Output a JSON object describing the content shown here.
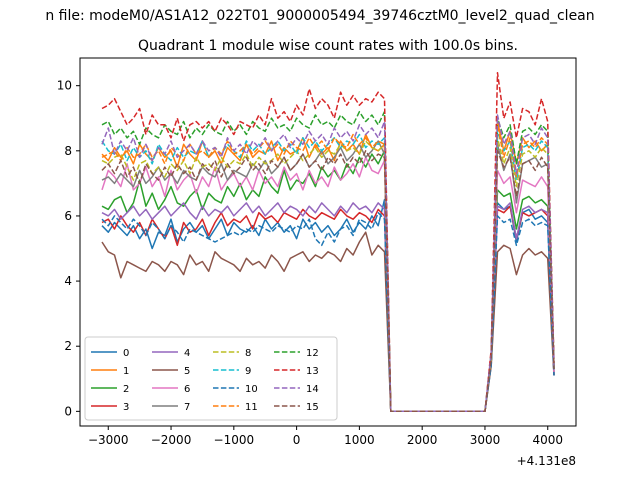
{
  "figure": {
    "suptitle": "n file: modeM0/AS1A12_022T01_9000005494_39746cztM0_level2_quad_clean",
    "title": "Quadrant 1 module wise count rates with 100.0s bins.",
    "offset_label": "+4.131e8"
  },
  "chart_data": {
    "type": "line",
    "title": "Quadrant 1 module wise count rates with 100.0s bins.",
    "xlabel": "",
    "ylabel": "",
    "x_offset": 413100000,
    "xlim": [
      -3450,
      4450
    ],
    "ylim": [
      -0.45,
      10.85
    ],
    "xticks": [
      -3000,
      -2000,
      -1000,
      0,
      1000,
      2000,
      3000,
      4000
    ],
    "xtick_labels": [
      "−3000",
      "−2000",
      "−1000",
      "0",
      "1000",
      "2000",
      "3000",
      "4000"
    ],
    "yticks": [
      0,
      2,
      4,
      6,
      8,
      10
    ],
    "ytick_labels": [
      "0",
      "2",
      "4",
      "6",
      "8",
      "10"
    ],
    "grid": false,
    "legend_placement": "lower-left",
    "legend_columns": 4,
    "x_segments": [
      {
        "start": -3100,
        "end": 1500,
        "step": 100
      },
      {
        "start": 3000,
        "end": 4100,
        "step": 100
      }
    ],
    "series": [
      {
        "name": "0",
        "color": "#1f77b4",
        "dash": "solid",
        "seg1": [
          5.7,
          5.5,
          5.8,
          5.6,
          5.4,
          5.7,
          5.3,
          5.6,
          5.0,
          5.5,
          5.4,
          5.9,
          5.2,
          5.6,
          5.8,
          5.5,
          5.7,
          5.3,
          5.6,
          5.9,
          5.4,
          5.8,
          5.6,
          5.5,
          5.7,
          5.4,
          5.9,
          5.6,
          5.8,
          5.5,
          5.7,
          5.3,
          5.9,
          5.6,
          5.8,
          5.5,
          5.7,
          5.4,
          5.6,
          5.9,
          5.5,
          5.8,
          5.6,
          6.0,
          5.7,
          6.5,
          0.0
        ],
        "seg2": [
          0.0,
          1.5,
          6.4,
          6.2,
          6.3,
          5.2,
          6.1,
          6.2,
          5.9,
          6.0,
          5.8,
          1.1
        ]
      },
      {
        "name": "1",
        "color": "#ff7f0e",
        "dash": "solid",
        "seg1": [
          7.9,
          7.7,
          8.1,
          7.8,
          8.0,
          7.6,
          8.2,
          7.9,
          7.7,
          8.1,
          7.8,
          8.0,
          7.5,
          8.2,
          7.9,
          7.7,
          8.3,
          7.8,
          8.0,
          7.6,
          8.1,
          7.9,
          7.7,
          8.2,
          7.8,
          8.0,
          7.9,
          8.3,
          7.7,
          8.1,
          7.9,
          8.0,
          8.4,
          7.8,
          8.2,
          7.9,
          8.1,
          7.7,
          8.3,
          8.0,
          8.2,
          7.9,
          8.5,
          8.1,
          8.0,
          8.2,
          0.0
        ],
        "seg2": [
          0.0,
          1.6,
          8.9,
          8.0,
          8.6,
          7.6,
          8.4,
          8.1,
          8.3,
          8.0,
          8.2,
          1.3
        ]
      },
      {
        "name": "2",
        "color": "#2ca02c",
        "dash": "solid",
        "seg1": [
          6.3,
          6.2,
          6.5,
          6.6,
          6.1,
          6.4,
          7.1,
          6.3,
          6.7,
          6.2,
          6.5,
          6.9,
          6.4,
          6.3,
          6.6,
          6.8,
          6.2,
          6.7,
          6.5,
          6.4,
          6.9,
          6.6,
          7.0,
          6.5,
          6.8,
          6.6,
          7.2,
          6.9,
          6.7,
          7.4,
          6.8,
          7.1,
          7.0,
          7.3,
          6.9,
          7.5,
          7.2,
          7.4,
          7.1,
          7.6,
          7.3,
          7.8,
          7.5,
          7.9,
          7.6,
          8.0,
          0.0
        ],
        "seg2": [
          0.0,
          1.5,
          6.8,
          6.6,
          6.7,
          5.6,
          6.5,
          6.6,
          6.4,
          6.5,
          6.3,
          1.2
        ]
      },
      {
        "name": "3",
        "color": "#d62728",
        "dash": "solid",
        "seg1": [
          5.8,
          5.9,
          5.6,
          6.0,
          5.7,
          5.5,
          5.8,
          5.4,
          5.9,
          5.6,
          5.3,
          5.7,
          5.1,
          5.8,
          5.5,
          5.6,
          5.9,
          5.4,
          5.8,
          6.1,
          5.7,
          5.9,
          5.8,
          6.0,
          5.6,
          6.1,
          5.9,
          6.0,
          5.8,
          6.1,
          6.0,
          5.9,
          6.2,
          6.0,
          5.9,
          6.1,
          6.0,
          5.9,
          6.2,
          6.0,
          5.9,
          6.1,
          6.0,
          5.8,
          6.2,
          6.0,
          0.0
        ],
        "seg2": [
          0.0,
          1.5,
          6.2,
          6.1,
          6.3,
          5.3,
          6.1,
          6.0,
          6.1,
          6.2,
          6.0,
          1.1
        ]
      },
      {
        "name": "4",
        "color": "#9467bd",
        "dash": "solid",
        "seg1": [
          6.1,
          6.0,
          6.2,
          5.9,
          6.1,
          6.3,
          6.0,
          6.2,
          5.9,
          6.1,
          6.3,
          6.0,
          6.2,
          6.4,
          6.1,
          5.9,
          6.3,
          6.0,
          6.2,
          6.1,
          6.3,
          6.0,
          6.2,
          6.4,
          6.1,
          6.3,
          6.0,
          6.2,
          6.4,
          6.1,
          6.3,
          6.2,
          6.0,
          6.3,
          6.1,
          6.4,
          6.2,
          6.0,
          6.3,
          6.1,
          6.4,
          6.2,
          6.3,
          6.1,
          6.4,
          6.2,
          0.0
        ],
        "seg2": [
          0.0,
          1.5,
          6.3,
          6.2,
          6.4,
          5.3,
          6.2,
          6.3,
          6.1,
          6.2,
          6.1,
          1.2
        ]
      },
      {
        "name": "5",
        "color": "#8c564b",
        "dash": "solid",
        "seg1": [
          5.2,
          4.9,
          4.8,
          4.1,
          4.6,
          4.5,
          4.4,
          4.3,
          4.6,
          4.5,
          4.3,
          4.6,
          4.5,
          4.2,
          4.8,
          4.5,
          4.6,
          4.3,
          4.9,
          4.7,
          4.6,
          4.5,
          4.3,
          4.7,
          4.5,
          4.6,
          4.4,
          4.8,
          4.6,
          4.3,
          4.7,
          4.8,
          4.9,
          4.6,
          4.8,
          4.7,
          4.9,
          4.8,
          4.6,
          5.0,
          4.8,
          5.2,
          5.5,
          4.8,
          5.1,
          4.9,
          0.0
        ],
        "seg2": [
          0.0,
          1.4,
          4.9,
          5.1,
          5.0,
          4.2,
          4.8,
          5.0,
          4.8,
          4.9,
          4.7,
          1.1
        ]
      },
      {
        "name": "6",
        "color": "#e377c2",
        "dash": "solid",
        "seg1": [
          6.8,
          7.4,
          7.2,
          6.9,
          7.6,
          6.8,
          7.0,
          7.5,
          6.9,
          7.2,
          6.6,
          7.4,
          6.8,
          7.1,
          7.3,
          6.7,
          7.2,
          6.9,
          7.5,
          6.8,
          7.1,
          7.3,
          6.9,
          7.2,
          6.8,
          7.4,
          7.0,
          7.2,
          6.9,
          7.5,
          7.1,
          7.3,
          6.8,
          7.4,
          7.0,
          7.2,
          6.9,
          7.5,
          7.1,
          7.3,
          7.6,
          7.2,
          7.8,
          7.4,
          7.3,
          7.7,
          0.0
        ],
        "seg2": [
          0.0,
          1.6,
          7.4,
          7.0,
          7.2,
          6.1,
          7.1,
          7.0,
          6.9,
          7.2,
          6.9,
          1.2
        ]
      },
      {
        "name": "7",
        "color": "#7f7f7f",
        "dash": "solid",
        "seg1": [
          7.1,
          7.2,
          7.0,
          7.3,
          7.1,
          6.9,
          7.4,
          7.0,
          7.2,
          7.5,
          7.1,
          7.3,
          7.0,
          7.4,
          7.2,
          7.1,
          7.5,
          7.3,
          7.2,
          7.6,
          7.1,
          7.4,
          7.3,
          7.2,
          7.6,
          7.4,
          7.7,
          7.3,
          7.5,
          7.8,
          7.4,
          7.6,
          7.9,
          7.5,
          7.7,
          8.0,
          7.6,
          7.8,
          8.1,
          7.7,
          7.9,
          8.2,
          7.8,
          8.0,
          8.3,
          7.9,
          0.0
        ],
        "seg2": [
          0.0,
          1.6,
          8.2,
          7.4,
          7.9,
          6.4,
          7.6,
          7.7,
          7.8,
          7.5,
          7.6,
          1.3
        ]
      },
      {
        "name": "8",
        "color": "#bcbd22",
        "dash": "dashed",
        "seg1": [
          7.7,
          7.6,
          7.8,
          7.9,
          7.5,
          7.1,
          7.6,
          7.7,
          7.3,
          7.5,
          7.2,
          7.6,
          7.4,
          7.7,
          7.3,
          7.8,
          7.5,
          7.6,
          7.4,
          7.8,
          7.5,
          7.7,
          7.6,
          7.9,
          7.5,
          7.8,
          7.6,
          7.7,
          7.9,
          7.6,
          7.8,
          8.0,
          7.7,
          7.9,
          8.1,
          7.8,
          8.0,
          7.9,
          8.2,
          8.0,
          8.1,
          7.9,
          8.3,
          8.1,
          8.0,
          8.2,
          0.0
        ],
        "seg2": [
          0.0,
          1.6,
          8.4,
          7.6,
          8.1,
          6.9,
          7.9,
          8.0,
          7.8,
          8.1,
          7.9,
          1.3
        ]
      },
      {
        "name": "9",
        "color": "#17becf",
        "dash": "dashed",
        "seg1": [
          8.3,
          8.0,
          7.9,
          8.2,
          7.7,
          8.1,
          7.8,
          8.0,
          7.6,
          8.2,
          7.9,
          7.7,
          8.1,
          7.8,
          8.0,
          7.9,
          8.3,
          7.8,
          8.1,
          7.9,
          8.2,
          8.0,
          7.8,
          8.3,
          8.0,
          8.2,
          7.9,
          8.1,
          8.3,
          8.0,
          8.2,
          7.9,
          8.4,
          8.1,
          8.3,
          8.0,
          8.2,
          8.4,
          8.1,
          8.3,
          8.2,
          8.5,
          8.1,
          8.3,
          8.2,
          8.4,
          0.0
        ],
        "seg2": [
          0.0,
          1.7,
          8.6,
          8.0,
          8.3,
          7.1,
          8.1,
          8.2,
          8.0,
          8.3,
          8.1,
          1.3
        ]
      },
      {
        "name": "10",
        "color": "#1f77b4",
        "dash": "dashed",
        "seg1": [
          5.9,
          5.7,
          6.0,
          5.8,
          5.6,
          5.9,
          5.7,
          5.4,
          5.8,
          5.6,
          5.3,
          5.7,
          5.5,
          5.2,
          5.6,
          5.5,
          5.4,
          5.3,
          5.2,
          5.3,
          5.4,
          5.5,
          5.4,
          5.6,
          5.5,
          5.7,
          5.6,
          5.5,
          5.7,
          5.6,
          5.5,
          5.7,
          5.6,
          5.9,
          5.3,
          5.1,
          5.5,
          5.2,
          5.6,
          5.7,
          5.4,
          5.9,
          5.8,
          5.6,
          6.1,
          5.9,
          0.0
        ],
        "seg2": [
          0.0,
          1.4,
          6.0,
          5.8,
          5.9,
          5.1,
          5.8,
          5.9,
          5.7,
          5.8,
          5.7,
          1.1
        ]
      },
      {
        "name": "11",
        "color": "#ff7f0e",
        "dash": "dashed",
        "seg1": [
          7.8,
          7.9,
          8.0,
          7.7,
          8.1,
          7.8,
          7.9,
          8.2,
          7.8,
          8.0,
          7.6,
          8.1,
          7.9,
          7.7,
          8.2,
          7.9,
          8.0,
          7.8,
          8.1,
          7.9,
          8.3,
          7.9,
          8.0,
          8.2,
          7.9,
          8.1,
          8.3,
          8.0,
          8.2,
          7.9,
          8.3,
          8.1,
          8.0,
          8.4,
          8.1,
          8.3,
          8.0,
          8.4,
          8.2,
          8.1,
          8.5,
          8.2,
          8.4,
          8.1,
          8.3,
          8.2,
          0.0
        ],
        "seg2": [
          0.0,
          1.7,
          8.8,
          7.8,
          8.4,
          7.2,
          8.2,
          8.3,
          8.1,
          8.4,
          8.2,
          1.4
        ]
      },
      {
        "name": "12",
        "color": "#2ca02c",
        "dash": "dashed",
        "seg1": [
          8.8,
          8.9,
          8.5,
          8.7,
          8.4,
          8.6,
          8.2,
          8.7,
          8.5,
          8.4,
          8.8,
          8.6,
          8.5,
          8.9,
          8.4,
          8.7,
          8.5,
          8.8,
          8.6,
          8.5,
          8.9,
          8.6,
          8.8,
          8.5,
          8.9,
          8.7,
          8.6,
          9.0,
          8.7,
          8.8,
          8.6,
          9.0,
          8.8,
          8.7,
          9.1,
          8.8,
          8.9,
          8.7,
          9.1,
          8.9,
          8.8,
          9.2,
          8.9,
          9.1,
          8.8,
          9.2,
          0.0
        ],
        "seg2": [
          0.0,
          1.8,
          9.0,
          8.4,
          8.8,
          7.6,
          8.6,
          8.7,
          8.5,
          8.8,
          8.6,
          1.4
        ]
      },
      {
        "name": "13",
        "color": "#d62728",
        "dash": "dashed",
        "seg1": [
          9.3,
          9.4,
          9.6,
          9.2,
          8.8,
          9.0,
          9.3,
          8.5,
          9.1,
          8.8,
          8.8,
          8.4,
          9.0,
          8.3,
          8.8,
          8.9,
          8.7,
          8.9,
          8.6,
          9.0,
          8.8,
          8.5,
          8.9,
          8.8,
          8.7,
          9.1,
          8.8,
          9.6,
          9.0,
          9.2,
          8.9,
          9.4,
          9.1,
          9.9,
          9.3,
          9.6,
          9.4,
          9.0,
          9.8,
          9.4,
          9.7,
          9.4,
          9.6,
          9.5,
          9.8,
          9.6,
          0.0
        ],
        "seg2": [
          0.0,
          1.9,
          10.4,
          9.0,
          9.5,
          8.4,
          9.3,
          9.2,
          8.8,
          9.6,
          8.9,
          1.5
        ]
      },
      {
        "name": "14",
        "color": "#9467bd",
        "dash": "dashed",
        "seg1": [
          8.2,
          8.7,
          7.9,
          8.3,
          8.0,
          8.4,
          7.8,
          8.2,
          7.7,
          8.1,
          7.9,
          8.3,
          7.8,
          8.0,
          8.2,
          7.9,
          8.3,
          8.0,
          8.1,
          7.8,
          8.4,
          8.0,
          8.2,
          7.9,
          8.3,
          8.1,
          8.4,
          8.0,
          8.3,
          8.5,
          8.1,
          8.4,
          8.2,
          8.6,
          8.3,
          8.5,
          8.2,
          8.7,
          8.4,
          8.6,
          8.3,
          8.8,
          8.5,
          8.7,
          8.4,
          8.9,
          0.0
        ],
        "seg2": [
          0.0,
          1.8,
          9.1,
          8.2,
          8.6,
          7.3,
          8.4,
          8.5,
          8.2,
          8.7,
          8.4,
          1.4
        ]
      },
      {
        "name": "15",
        "color": "#8c564b",
        "dash": "dashed",
        "seg1": [
          7.4,
          7.6,
          7.3,
          7.7,
          7.2,
          7.5,
          7.0,
          7.6,
          7.3,
          7.1,
          7.5,
          7.2,
          7.6,
          7.3,
          7.5,
          7.1,
          7.6,
          7.4,
          7.7,
          7.2,
          7.6,
          7.3,
          7.5,
          7.8,
          7.4,
          7.6,
          7.3,
          7.7,
          7.5,
          7.8,
          7.4,
          7.6,
          7.9,
          7.5,
          7.7,
          7.4,
          7.8,
          7.6,
          7.9,
          7.5,
          7.8,
          7.6,
          8.0,
          7.7,
          7.9,
          7.8,
          0.0
        ],
        "seg2": [
          0.0,
          1.6,
          8.0,
          7.5,
          7.8,
          6.6,
          7.6,
          7.7,
          7.4,
          7.8,
          7.5,
          1.3
        ]
      }
    ]
  }
}
